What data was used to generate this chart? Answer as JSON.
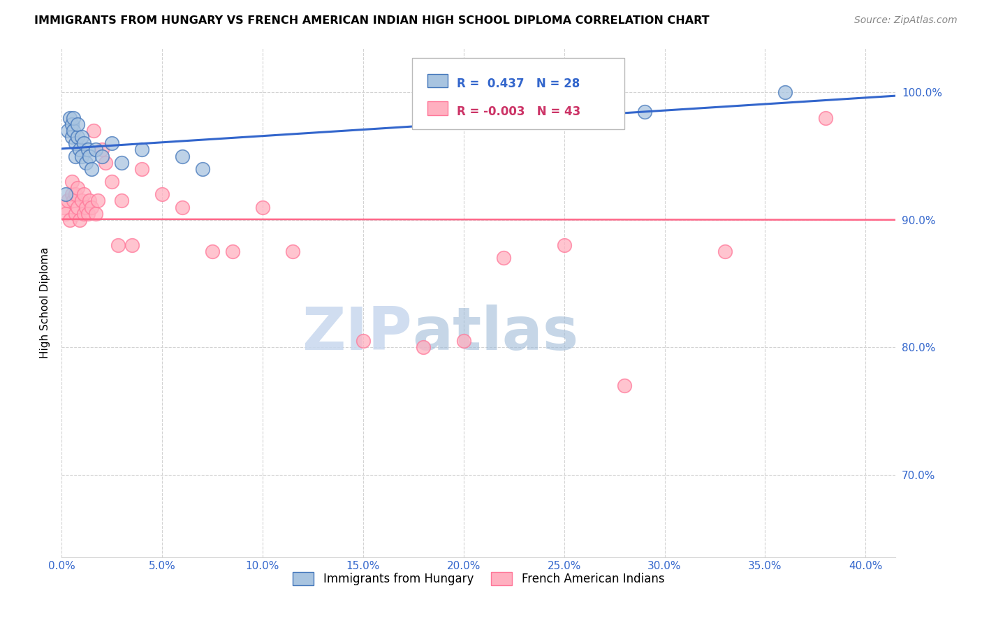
{
  "title": "IMMIGRANTS FROM HUNGARY VS FRENCH AMERICAN INDIAN HIGH SCHOOL DIPLOMA CORRELATION CHART",
  "source": "Source: ZipAtlas.com",
  "ylabel": "High School Diploma",
  "ytick_vals": [
    0.7,
    0.8,
    0.9,
    1.0
  ],
  "ytick_labels": [
    "70.0%",
    "80.0%",
    "90.0%",
    "100.0%"
  ],
  "xtick_vals": [
    0.0,
    0.05,
    0.1,
    0.15,
    0.2,
    0.25,
    0.3,
    0.35,
    0.4
  ],
  "xtick_labels": [
    "0.0%",
    "5.0%",
    "10.0%",
    "15.0%",
    "20.0%",
    "25.0%",
    "30.0%",
    "35.0%",
    "40.0%"
  ],
  "xlim": [
    0.0,
    0.415
  ],
  "ylim": [
    0.635,
    1.035
  ],
  "r_hungary": 0.437,
  "n_hungary": 28,
  "r_french": -0.003,
  "n_french": 43,
  "legend_hungary": "Immigrants from Hungary",
  "legend_french": "French American Indians",
  "blue_fill": "#A8C4E0",
  "blue_edge": "#4477BB",
  "pink_fill": "#FFB0C0",
  "pink_edge": "#FF7799",
  "trend_blue": "#3366CC",
  "trend_pink": "#FF6688",
  "watermark_zip": "ZIP",
  "watermark_atlas": "atlas",
  "hungary_x": [
    0.002,
    0.003,
    0.004,
    0.005,
    0.005,
    0.006,
    0.006,
    0.007,
    0.007,
    0.008,
    0.008,
    0.009,
    0.01,
    0.01,
    0.011,
    0.012,
    0.013,
    0.014,
    0.015,
    0.017,
    0.02,
    0.025,
    0.03,
    0.04,
    0.06,
    0.07,
    0.29,
    0.36
  ],
  "hungary_y": [
    0.92,
    0.97,
    0.98,
    0.975,
    0.965,
    0.97,
    0.98,
    0.95,
    0.96,
    0.965,
    0.975,
    0.955,
    0.95,
    0.965,
    0.96,
    0.945,
    0.955,
    0.95,
    0.94,
    0.955,
    0.95,
    0.96,
    0.945,
    0.955,
    0.95,
    0.94,
    0.985,
    1.0
  ],
  "french_x": [
    0.001,
    0.002,
    0.003,
    0.004,
    0.005,
    0.005,
    0.006,
    0.007,
    0.007,
    0.008,
    0.008,
    0.009,
    0.01,
    0.011,
    0.011,
    0.012,
    0.013,
    0.014,
    0.015,
    0.016,
    0.017,
    0.018,
    0.02,
    0.022,
    0.025,
    0.028,
    0.03,
    0.035,
    0.04,
    0.05,
    0.06,
    0.075,
    0.085,
    0.1,
    0.115,
    0.15,
    0.18,
    0.2,
    0.22,
    0.25,
    0.28,
    0.33,
    0.38
  ],
  "french_y": [
    0.91,
    0.905,
    0.915,
    0.9,
    0.92,
    0.93,
    0.915,
    0.905,
    0.92,
    0.91,
    0.925,
    0.9,
    0.915,
    0.905,
    0.92,
    0.91,
    0.905,
    0.915,
    0.91,
    0.97,
    0.905,
    0.915,
    0.955,
    0.945,
    0.93,
    0.88,
    0.915,
    0.88,
    0.94,
    0.92,
    0.91,
    0.875,
    0.875,
    0.91,
    0.875,
    0.805,
    0.8,
    0.805,
    0.87,
    0.88,
    0.77,
    0.875,
    0.98
  ]
}
